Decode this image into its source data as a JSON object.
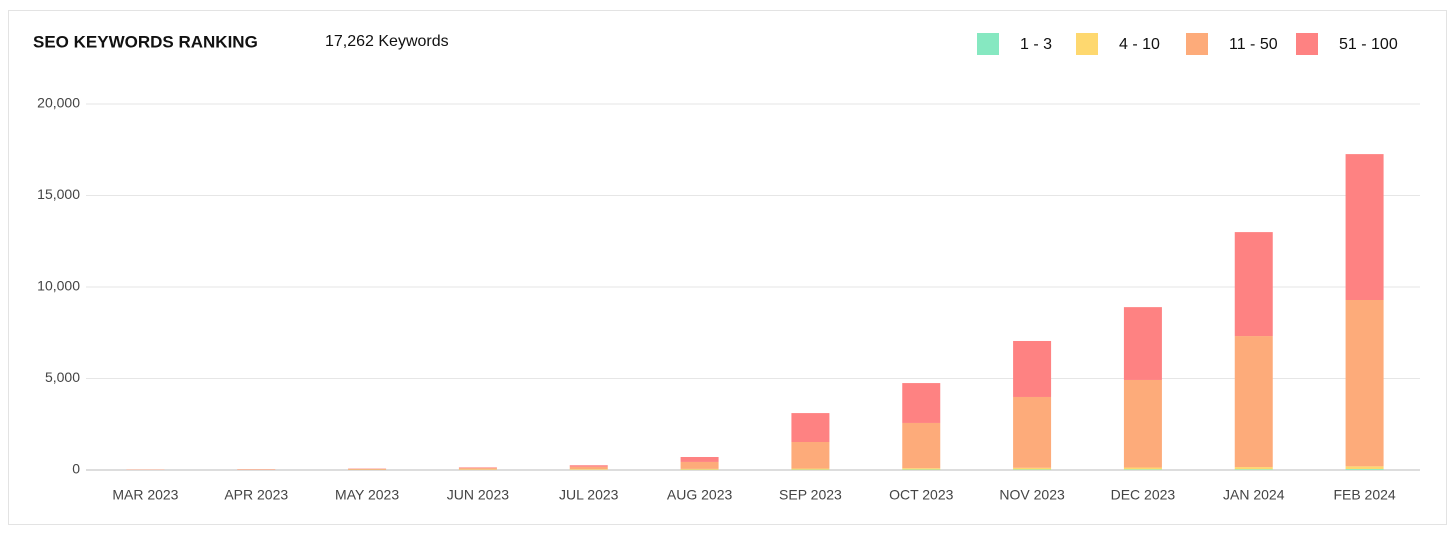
{
  "chart_data": {
    "type": "stacked-bar",
    "title": "SEO KEYWORDS RANKING",
    "subtitle": "17,262 Keywords",
    "categories": [
      "MAR 2023",
      "APR 2023",
      "MAY 2023",
      "JUN 2023",
      "JUL 2023",
      "AUG 2023",
      "SEP 2023",
      "OCT 2023",
      "NOV 2023",
      "DEC 2023",
      "JAN 2024",
      "FEB 2024"
    ],
    "series": [
      {
        "name": "1 - 3",
        "color": "#86e8c1",
        "values": [
          2,
          3,
          5,
          8,
          10,
          15,
          20,
          25,
          30,
          35,
          40,
          50
        ]
      },
      {
        "name": "4 - 10",
        "color": "#fed86f",
        "values": [
          5,
          8,
          15,
          25,
          35,
          45,
          60,
          75,
          90,
          100,
          120,
          150
        ]
      },
      {
        "name": "11 - 50",
        "color": "#fdab7a",
        "values": [
          15,
          22,
          40,
          70,
          130,
          380,
          1450,
          2470,
          3870,
          4785,
          7160,
          9090
        ]
      },
      {
        "name": "51 - 100",
        "color": "#fe8282",
        "values": [
          8,
          12,
          20,
          37,
          85,
          270,
          1580,
          2180,
          3060,
          3980,
          5680,
          7972
        ]
      }
    ],
    "ylim": [
      0,
      20000
    ],
    "yticks": [
      0,
      {
        "value": 5000,
        "label": "5,000"
      },
      {
        "value": 10000,
        "label": "10,000"
      },
      {
        "value": 15000,
        "label": "15,000"
      },
      {
        "value": 20000,
        "label": "20,000"
      }
    ],
    "grid": true,
    "legend": "top-right"
  }
}
